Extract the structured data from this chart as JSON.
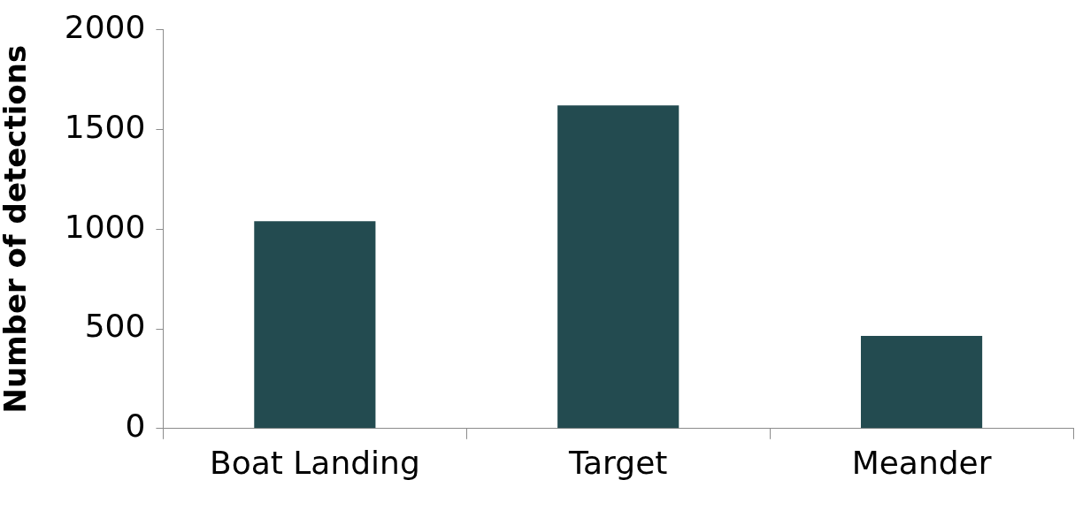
{
  "chart_data": {
    "type": "bar",
    "ylabel": "Number of detections",
    "categories": [
      "Boat Landing",
      "Target",
      "Meander"
    ],
    "values": [
      1040,
      1620,
      465
    ],
    "color": "#234b50",
    "ylim": [
      0,
      2000
    ],
    "yticks": [
      0,
      500,
      1000,
      1500,
      2000
    ],
    "grid": false,
    "legend": false
  }
}
